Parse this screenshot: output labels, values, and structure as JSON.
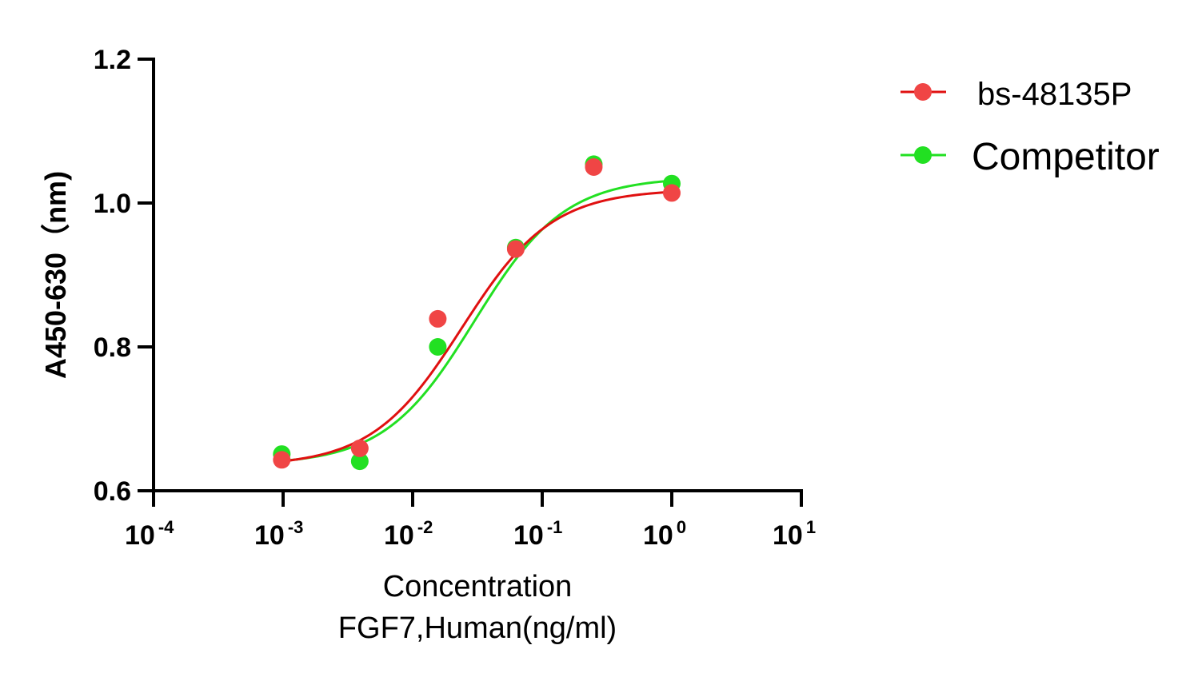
{
  "chart_data": {
    "type": "scatter",
    "title": "",
    "xlabel": [
      "Concentration",
      "FGF7,Human(ng/ml)"
    ],
    "ylabel": "A450-630（nm)",
    "xscale": "log",
    "xlim": [
      0.0001,
      10
    ],
    "ylim": [
      0.6,
      1.2
    ],
    "yticks": [
      {
        "value": 0.6,
        "label": "0.6"
      },
      {
        "value": 0.8,
        "label": "0.8"
      },
      {
        "value": 1.0,
        "label": "1.0"
      },
      {
        "value": 1.2,
        "label": "1.2"
      }
    ],
    "xticks": [
      {
        "value": 0.0001,
        "base": "10",
        "exp": "-4"
      },
      {
        "value": 0.001,
        "base": "10",
        "exp": "-3"
      },
      {
        "value": 0.01,
        "base": "10",
        "exp": "-2"
      },
      {
        "value": 0.1,
        "base": "10",
        "exp": "-1"
      },
      {
        "value": 1,
        "base": "10",
        "exp": "0"
      },
      {
        "value": 10,
        "base": "10",
        "exp": "1"
      }
    ],
    "grid": false,
    "legend_position": "top-right",
    "x": [
      0.0009765625,
      0.00390625,
      0.015625,
      0.0625,
      0.25,
      1
    ],
    "series": [
      {
        "name": "Competitor",
        "color": "#22e022",
        "values": [
          0.651,
          0.641,
          0.8,
          0.938,
          1.054,
          1.027
        ],
        "fit": {
          "model": "4PL",
          "bottom": 0.636,
          "top": 1.036,
          "ec50": 0.03,
          "hill": 1.25
        }
      },
      {
        "name": "bs-48135P",
        "color": "#f04545",
        "line_color": "#e01010",
        "values": [
          0.643,
          0.659,
          0.839,
          0.936,
          1.05,
          1.014
        ],
        "fit": {
          "model": "4PL",
          "bottom": 0.634,
          "top": 1.019,
          "ec50": 0.024,
          "hill": 1.25
        }
      }
    ],
    "legend": [
      {
        "name": "bs-48135P",
        "color": "#f04545",
        "line_color": "#e01010"
      },
      {
        "name": "Competitor",
        "color": "#22e022",
        "line_color": "#22e022"
      }
    ]
  }
}
